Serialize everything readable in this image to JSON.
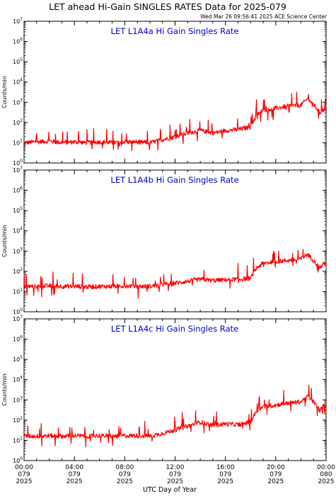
{
  "header": {
    "title": "LET ahead Hi-Gain SINGLES RATES Data for 2025-079",
    "timestamp": "Wed Mar 26 09:56:41 2025 ACE Science Center"
  },
  "chart_data": [
    {
      "type": "line",
      "title": "LET L1A4a Hi Gain Singles Rate",
      "ylabel": "Counts/min",
      "yscale": "log",
      "ylim": [
        1,
        10000000
      ],
      "xlim": [
        "00:00",
        "24:00"
      ],
      "color": "#ff0000",
      "x_hours": [
        0,
        1,
        2,
        3,
        4,
        5,
        6,
        7,
        8,
        9,
        10,
        11,
        12,
        13,
        14,
        15,
        16,
        17,
        18,
        18.5,
        19,
        20,
        21,
        22,
        22.5,
        23,
        23.5,
        24
      ],
      "y": [
        10,
        11,
        12,
        10,
        11,
        10,
        11,
        10,
        11,
        11,
        10,
        14,
        20,
        30,
        40,
        30,
        40,
        45,
        60,
        250,
        400,
        500,
        650,
        700,
        1500,
        800,
        300,
        550
      ]
    },
    {
      "type": "line",
      "title": "LET L1A4b Hi Gain Singles Rate",
      "ylabel": "Counts/min",
      "yscale": "log",
      "ylim": [
        1,
        10000000
      ],
      "xlim": [
        "00:00",
        "24:00"
      ],
      "color": "#ff0000",
      "x_hours": [
        0,
        1,
        2,
        3,
        4,
        5,
        6,
        7,
        8,
        9,
        10,
        11,
        12,
        13,
        14,
        15,
        16,
        17,
        18,
        18.5,
        19,
        20,
        21,
        22,
        22.5,
        23,
        23.5,
        24
      ],
      "y": [
        18,
        18,
        19,
        18,
        18,
        17,
        18,
        18,
        19,
        18,
        18,
        22,
        26,
        32,
        40,
        35,
        38,
        40,
        45,
        150,
        250,
        300,
        350,
        400,
        700,
        350,
        150,
        300
      ]
    },
    {
      "type": "line",
      "title": "LET L1A4c Hi Gain Singles Rate",
      "ylabel": "Counts/min",
      "yscale": "log",
      "ylim": [
        1,
        10000000
      ],
      "xlim": [
        "00:00",
        "24:00"
      ],
      "color": "#ff0000",
      "x_hours": [
        0,
        1,
        2,
        3,
        4,
        5,
        6,
        7,
        8,
        9,
        10,
        11,
        12,
        13,
        14,
        15,
        16,
        17,
        18,
        18.5,
        19,
        20,
        21,
        22,
        22.5,
        23,
        23.5,
        24
      ],
      "y": [
        16,
        16,
        17,
        16,
        17,
        16,
        17,
        16,
        17,
        17,
        16,
        22,
        32,
        50,
        80,
        55,
        65,
        60,
        80,
        300,
        450,
        550,
        700,
        800,
        1600,
        800,
        300,
        700
      ]
    }
  ],
  "xaxis": {
    "label": "UTC Day of Year",
    "ticks": [
      {
        "time": "00:00",
        "doy": "079",
        "year": "2025"
      },
      {
        "time": "04:00",
        "doy": "079",
        "year": "2025"
      },
      {
        "time": "08:00",
        "doy": "079",
        "year": "2025"
      },
      {
        "time": "12:00",
        "doy": "079",
        "year": "2025"
      },
      {
        "time": "16:00",
        "doy": "079",
        "year": "2025"
      },
      {
        "time": "20:00",
        "doy": "079",
        "year": "2025"
      },
      {
        "time": "00:00",
        "doy": "080",
        "year": "2025"
      }
    ]
  }
}
